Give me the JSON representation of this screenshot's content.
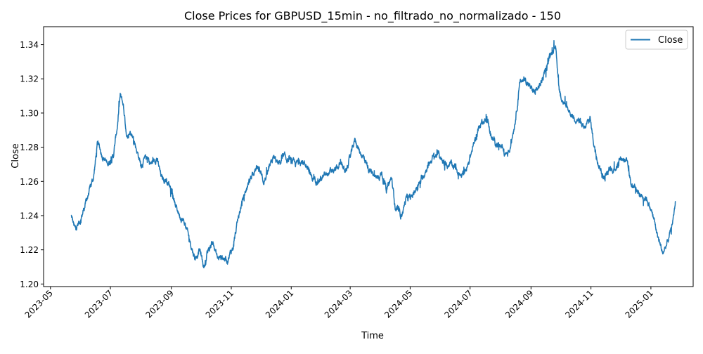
{
  "chart_data": {
    "type": "line",
    "title": "Close Prices for GBPUSD_15min - no_filtrado_no_normalizado - 150",
    "xlabel": "Time",
    "ylabel": "Close",
    "legend": {
      "placement": "top-right",
      "entries": [
        "Close"
      ]
    },
    "grid": false,
    "xlim": [
      "2023-04-24",
      "2025-02-13"
    ],
    "ylim": [
      1.1985,
      1.3505
    ],
    "x_ticks": [
      "2023-05",
      "2023-07",
      "2023-09",
      "2023-11",
      "2024-01",
      "2024-03",
      "2024-05",
      "2024-07",
      "2024-09",
      "2024-11",
      "2025-01"
    ],
    "x_tick_dates": [
      "2023-05-01",
      "2023-07-01",
      "2023-09-01",
      "2023-11-01",
      "2024-01-01",
      "2024-03-01",
      "2024-05-01",
      "2024-07-01",
      "2024-09-01",
      "2024-11-01",
      "2025-01-01"
    ],
    "y_ticks": [
      1.2,
      1.22,
      1.24,
      1.26,
      1.28,
      1.3,
      1.32,
      1.34
    ],
    "y_tick_labels": [
      "1.20",
      "1.22",
      "1.24",
      "1.26",
      "1.28",
      "1.30",
      "1.32",
      "1.34"
    ],
    "series": [
      {
        "name": "Close",
        "color": "#1f77b4",
        "x": [
          "2023-05-22",
          "2023-05-26",
          "2023-06-01",
          "2023-06-05",
          "2023-06-10",
          "2023-06-14",
          "2023-06-18",
          "2023-06-23",
          "2023-06-28",
          "2023-07-04",
          "2023-07-08",
          "2023-07-11",
          "2023-07-14",
          "2023-07-18",
          "2023-07-22",
          "2023-07-27",
          "2023-08-01",
          "2023-08-07",
          "2023-08-11",
          "2023-08-17",
          "2023-08-22",
          "2023-08-27",
          "2023-09-01",
          "2023-09-05",
          "2023-09-10",
          "2023-09-15",
          "2023-09-20",
          "2023-09-25",
          "2023-09-30",
          "2023-10-04",
          "2023-10-08",
          "2023-10-13",
          "2023-10-18",
          "2023-10-23",
          "2023-10-28",
          "2023-11-03",
          "2023-11-08",
          "2023-11-13",
          "2023-11-18",
          "2023-11-23",
          "2023-11-29",
          "2023-12-04",
          "2023-12-09",
          "2023-12-14",
          "2023-12-19",
          "2023-12-25",
          "2023-12-30",
          "2024-01-05",
          "2024-01-10",
          "2024-01-16",
          "2024-01-22",
          "2024-01-28",
          "2024-02-02",
          "2024-02-08",
          "2024-02-14",
          "2024-02-20",
          "2024-02-26",
          "2024-03-02",
          "2024-03-06",
          "2024-03-10",
          "2024-03-15",
          "2024-03-21",
          "2024-03-27",
          "2024-04-02",
          "2024-04-07",
          "2024-04-12",
          "2024-04-16",
          "2024-04-22",
          "2024-04-27",
          "2024-05-02",
          "2024-05-07",
          "2024-05-12",
          "2024-05-18",
          "2024-05-24",
          "2024-05-30",
          "2024-06-05",
          "2024-06-11",
          "2024-06-17",
          "2024-06-22",
          "2024-06-28",
          "2024-07-04",
          "2024-07-09",
          "2024-07-14",
          "2024-07-19",
          "2024-07-24",
          "2024-07-30",
          "2024-08-05",
          "2024-08-10",
          "2024-08-16",
          "2024-08-21",
          "2024-08-26",
          "2024-08-31",
          "2024-09-05",
          "2024-09-10",
          "2024-09-16",
          "2024-09-21",
          "2024-09-26",
          "2024-09-30",
          "2024-10-04",
          "2024-10-09",
          "2024-10-14",
          "2024-10-19",
          "2024-10-25",
          "2024-10-31",
          "2024-11-04",
          "2024-11-09",
          "2024-11-14",
          "2024-11-20",
          "2024-11-26",
          "2024-12-02",
          "2024-12-07",
          "2024-12-12",
          "2024-12-17",
          "2024-12-22",
          "2024-12-28",
          "2025-01-03",
          "2025-01-08",
          "2025-01-13",
          "2025-01-17",
          "2025-01-22",
          "2025-01-26"
        ],
        "y": [
          1.24,
          1.232,
          1.238,
          1.246,
          1.255,
          1.263,
          1.283,
          1.275,
          1.27,
          1.275,
          1.292,
          1.31,
          1.305,
          1.285,
          1.29,
          1.28,
          1.27,
          1.274,
          1.27,
          1.274,
          1.262,
          1.261,
          1.256,
          1.246,
          1.24,
          1.235,
          1.225,
          1.215,
          1.22,
          1.21,
          1.218,
          1.225,
          1.215,
          1.216,
          1.214,
          1.222,
          1.238,
          1.25,
          1.258,
          1.266,
          1.268,
          1.26,
          1.266,
          1.274,
          1.27,
          1.274,
          1.272,
          1.27,
          1.272,
          1.27,
          1.262,
          1.261,
          1.262,
          1.265,
          1.266,
          1.27,
          1.266,
          1.276,
          1.285,
          1.278,
          1.274,
          1.266,
          1.262,
          1.265,
          1.255,
          1.262,
          1.245,
          1.24,
          1.25,
          1.25,
          1.256,
          1.26,
          1.268,
          1.274,
          1.276,
          1.27,
          1.27,
          1.268,
          1.262,
          1.268,
          1.28,
          1.29,
          1.296,
          1.295,
          1.284,
          1.282,
          1.276,
          1.278,
          1.296,
          1.318,
          1.32,
          1.315,
          1.312,
          1.316,
          1.325,
          1.335,
          1.34,
          1.312,
          1.306,
          1.302,
          1.298,
          1.296,
          1.29,
          1.297,
          1.282,
          1.27,
          1.262,
          1.266,
          1.268,
          1.274,
          1.272,
          1.258,
          1.256,
          1.252,
          1.25,
          1.24,
          1.228,
          1.218,
          1.223,
          1.232,
          1.248
        ]
      }
    ]
  }
}
